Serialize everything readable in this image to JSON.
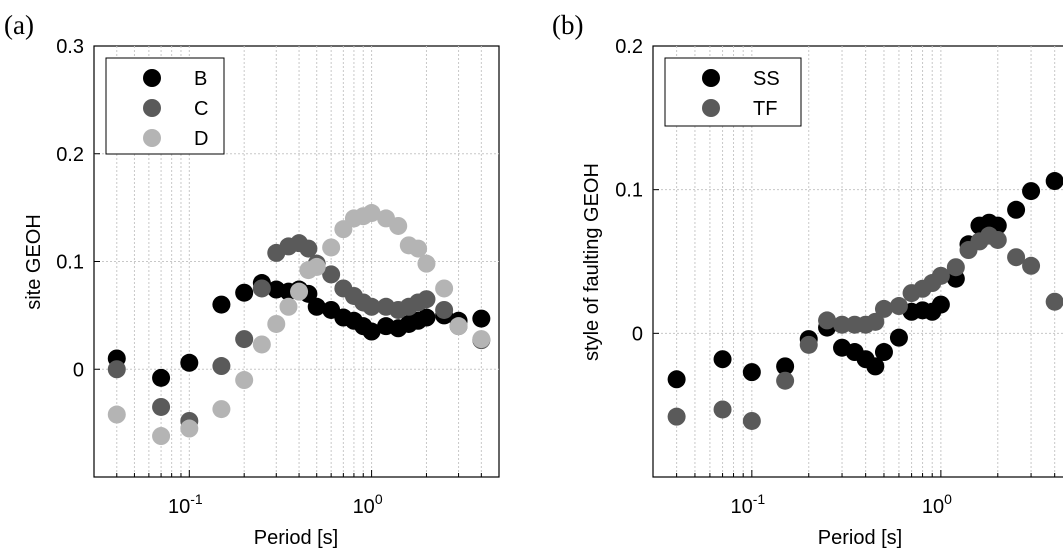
{
  "chart_data": [
    {
      "type": "scatter",
      "panel_label": "(a)",
      "xlabel": "Period [s]",
      "ylabel": "site GEOH",
      "xscale": "log",
      "xlim": [
        0.03,
        5
      ],
      "ylim": [
        -0.1,
        0.3
      ],
      "yticks": [
        0,
        0.1,
        0.2,
        0.3
      ],
      "ytick_labels": [
        "0",
        "0.1",
        "0.2",
        "0.3"
      ],
      "xtick_labels": [
        {
          "base": "10",
          "exp": "-1",
          "value": 0.1
        },
        {
          "base": "10",
          "exp": "0",
          "value": 1
        }
      ],
      "grid": true,
      "legend_position": "top-left",
      "series": [
        {
          "name": "B",
          "color": "#000000",
          "points": [
            [
              0.04,
              0.01
            ],
            [
              0.07,
              -0.008
            ],
            [
              0.1,
              0.006
            ],
            [
              0.15,
              0.06
            ],
            [
              0.2,
              0.071
            ],
            [
              0.25,
              0.08
            ],
            [
              0.3,
              0.074
            ],
            [
              0.35,
              0.072
            ],
            [
              0.4,
              0.074
            ],
            [
              0.45,
              0.07
            ],
            [
              0.5,
              0.058
            ],
            [
              0.6,
              0.055
            ],
            [
              0.7,
              0.048
            ],
            [
              0.8,
              0.045
            ],
            [
              0.9,
              0.04
            ],
            [
              1.0,
              0.035
            ],
            [
              1.2,
              0.04
            ],
            [
              1.4,
              0.038
            ],
            [
              1.6,
              0.042
            ],
            [
              1.8,
              0.045
            ],
            [
              2.0,
              0.048
            ],
            [
              2.5,
              0.05
            ],
            [
              3.0,
              0.045
            ],
            [
              4.0,
              0.047
            ]
          ]
        },
        {
          "name": "C",
          "color": "#5a5a5a",
          "points": [
            [
              0.04,
              0.0
            ],
            [
              0.07,
              -0.035
            ],
            [
              0.1,
              -0.048
            ],
            [
              0.15,
              0.003
            ],
            [
              0.2,
              0.028
            ],
            [
              0.25,
              0.075
            ],
            [
              0.3,
              0.108
            ],
            [
              0.35,
              0.114
            ],
            [
              0.4,
              0.117
            ],
            [
              0.45,
              0.112
            ],
            [
              0.5,
              0.098
            ],
            [
              0.6,
              0.088
            ],
            [
              0.7,
              0.075
            ],
            [
              0.8,
              0.068
            ],
            [
              0.9,
              0.062
            ],
            [
              1.0,
              0.058
            ],
            [
              1.2,
              0.058
            ],
            [
              1.4,
              0.055
            ],
            [
              1.6,
              0.058
            ],
            [
              1.8,
              0.062
            ],
            [
              2.0,
              0.065
            ],
            [
              2.5,
              0.055
            ],
            [
              3.0,
              0.04
            ],
            [
              4.0,
              0.027
            ]
          ]
        },
        {
          "name": "D",
          "color": "#b4b4b4",
          "points": [
            [
              0.04,
              -0.042
            ],
            [
              0.07,
              -0.062
            ],
            [
              0.1,
              -0.055
            ],
            [
              0.15,
              -0.037
            ],
            [
              0.2,
              -0.01
            ],
            [
              0.25,
              0.023
            ],
            [
              0.3,
              0.042
            ],
            [
              0.35,
              0.058
            ],
            [
              0.4,
              0.072
            ],
            [
              0.45,
              0.092
            ],
            [
              0.5,
              0.095
            ],
            [
              0.6,
              0.113
            ],
            [
              0.7,
              0.13
            ],
            [
              0.8,
              0.14
            ],
            [
              0.9,
              0.142
            ],
            [
              1.0,
              0.145
            ],
            [
              1.2,
              0.14
            ],
            [
              1.4,
              0.133
            ],
            [
              1.6,
              0.115
            ],
            [
              1.8,
              0.112
            ],
            [
              2.0,
              0.098
            ],
            [
              2.5,
              0.075
            ],
            [
              3.0,
              0.04
            ],
            [
              4.0,
              0.028
            ]
          ]
        }
      ]
    },
    {
      "type": "scatter",
      "panel_label": "(b)",
      "xlabel": "Period [s]",
      "ylabel": "style of faulting GEOH",
      "xscale": "log",
      "xlim": [
        0.03,
        5
      ],
      "ylim": [
        -0.1,
        0.2
      ],
      "yticks": [
        0,
        0.1,
        0.2
      ],
      "ytick_labels": [
        "0",
        "0.1",
        "0.2"
      ],
      "xtick_labels": [
        {
          "base": "10",
          "exp": "-1",
          "value": 0.1
        },
        {
          "base": "10",
          "exp": "0",
          "value": 1
        }
      ],
      "grid": true,
      "legend_position": "top-left",
      "series": [
        {
          "name": "SS",
          "color": "#000000",
          "points": [
            [
              0.04,
              -0.032
            ],
            [
              0.07,
              -0.018
            ],
            [
              0.1,
              -0.027
            ],
            [
              0.15,
              -0.023
            ],
            [
              0.2,
              -0.004
            ],
            [
              0.25,
              0.004
            ],
            [
              0.3,
              -0.01
            ],
            [
              0.35,
              -0.013
            ],
            [
              0.4,
              -0.018
            ],
            [
              0.45,
              -0.023
            ],
            [
              0.5,
              -0.013
            ],
            [
              0.6,
              -0.003
            ],
            [
              0.7,
              0.015
            ],
            [
              0.8,
              0.016
            ],
            [
              0.9,
              0.015
            ],
            [
              1.0,
              0.02
            ],
            [
              1.2,
              0.038
            ],
            [
              1.4,
              0.062
            ],
            [
              1.6,
              0.075
            ],
            [
              1.8,
              0.077
            ],
            [
              2.0,
              0.075
            ],
            [
              2.5,
              0.086
            ],
            [
              3.0,
              0.099
            ],
            [
              4.0,
              0.106
            ]
          ]
        },
        {
          "name": "TF",
          "color": "#5a5a5a",
          "points": [
            [
              0.04,
              -0.058
            ],
            [
              0.07,
              -0.053
            ],
            [
              0.1,
              -0.061
            ],
            [
              0.15,
              -0.033
            ],
            [
              0.2,
              -0.008
            ],
            [
              0.25,
              0.009
            ],
            [
              0.3,
              0.006
            ],
            [
              0.35,
              0.006
            ],
            [
              0.4,
              0.006
            ],
            [
              0.45,
              0.008
            ],
            [
              0.5,
              0.017
            ],
            [
              0.6,
              0.019
            ],
            [
              0.7,
              0.028
            ],
            [
              0.8,
              0.031
            ],
            [
              0.9,
              0.035
            ],
            [
              1.0,
              0.04
            ],
            [
              1.2,
              0.046
            ],
            [
              1.4,
              0.058
            ],
            [
              1.6,
              0.064
            ],
            [
              1.8,
              0.068
            ],
            [
              2.0,
              0.065
            ],
            [
              2.5,
              0.053
            ],
            [
              3.0,
              0.047
            ],
            [
              4.0,
              0.022
            ]
          ]
        }
      ]
    }
  ]
}
